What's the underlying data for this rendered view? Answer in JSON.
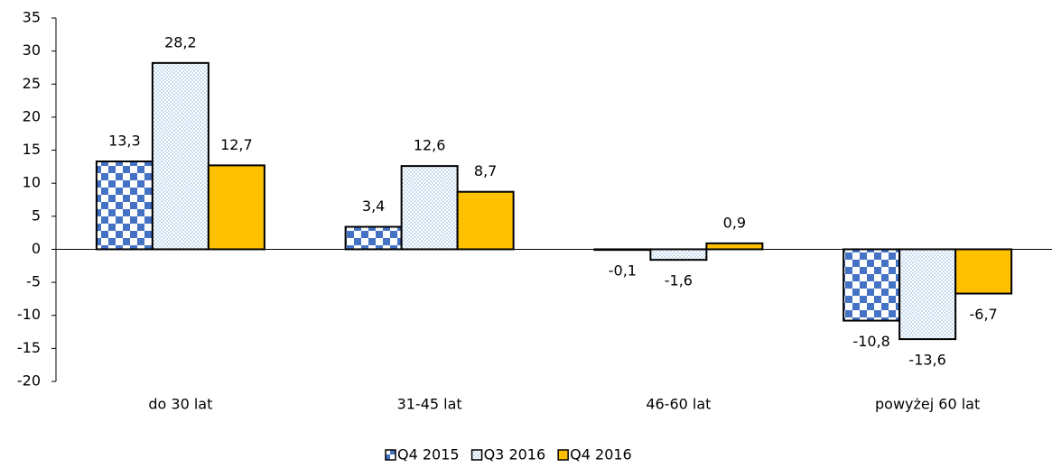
{
  "chart_data": {
    "type": "bar",
    "categories": [
      "do 30 lat",
      "31-45 lat",
      "46-60 lat",
      "powyżej 60 lat"
    ],
    "series": [
      {
        "name": "Q4 2015",
        "color": "#4472c4",
        "values": [
          13.3,
          3.4,
          -0.1,
          -10.8
        ],
        "value_labels": [
          "13,3",
          "3,4",
          "-0,1",
          "-10,8"
        ]
      },
      {
        "name": "Q3 2016",
        "color": "#9dc3e6",
        "values": [
          28.2,
          12.6,
          -1.6,
          -13.6
        ],
        "value_labels": [
          "28,2",
          "12,6",
          "-1,6",
          "-13,6"
        ]
      },
      {
        "name": "Q4 2016",
        "color": "#ffc000",
        "values": [
          12.7,
          8.7,
          0.9,
          -6.7
        ],
        "value_labels": [
          "12,7",
          "8,7",
          "0,9",
          "-6,7"
        ]
      }
    ],
    "ylim": [
      -20,
      35
    ],
    "yticks": [
      -20,
      -15,
      -10,
      -5,
      0,
      5,
      10,
      15,
      20,
      25,
      30,
      35
    ],
    "legend": "bottom"
  }
}
